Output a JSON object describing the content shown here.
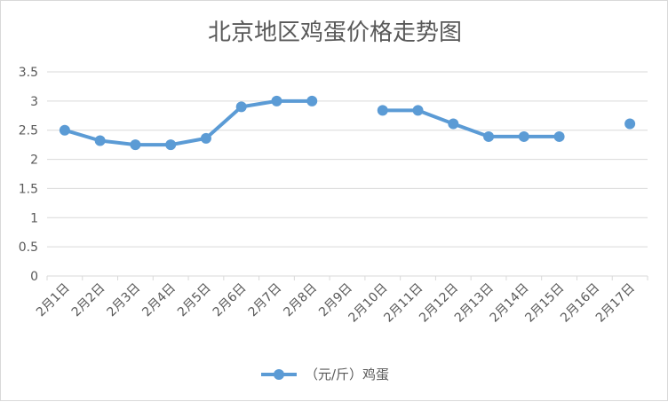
{
  "chart_data": {
    "type": "line",
    "title": "北京地区鸡蛋价格走势图",
    "xlabel": "",
    "ylabel": "",
    "categories": [
      "2月1日",
      "2月2日",
      "2月3日",
      "2月4日",
      "2月5日",
      "2月6日",
      "2月7日",
      "2月8日",
      "2月9日",
      "2月10日",
      "2月11日",
      "2月12日",
      "2月13日",
      "2月14日",
      "2月15日",
      "2月16日",
      "2月17日"
    ],
    "series": [
      {
        "name": "（元/斤）鸡蛋",
        "values": [
          2.5,
          2.32,
          2.25,
          2.25,
          2.36,
          2.9,
          3.0,
          3.0,
          null,
          2.84,
          2.84,
          2.61,
          2.39,
          2.39,
          2.39,
          null,
          2.61
        ]
      }
    ],
    "ylim": [
      0,
      3.5
    ],
    "yticks": [
      "0",
      "0.5",
      "1",
      "1.5",
      "2",
      "2.5",
      "3",
      "3.5"
    ],
    "grid": true,
    "legend": "bottom",
    "colors": {
      "line": "#5b9bd5",
      "grid": "#d9d9d9",
      "text": "#595959"
    }
  }
}
